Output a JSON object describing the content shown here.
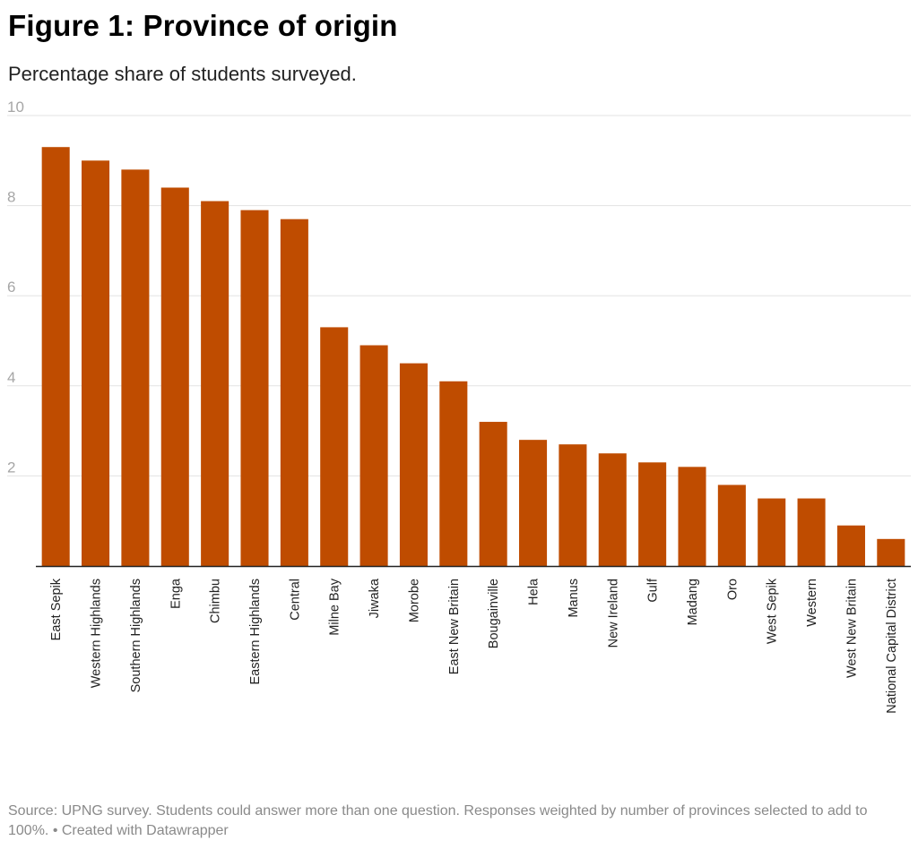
{
  "title": "Figure 1: Province of origin",
  "subtitle": "Percentage share of students surveyed.",
  "footer": {
    "source": "Source: UPNG survey. Students could answer more than one question. Responses weighted by number of provinces selected to add to 100%.",
    "separator": " • ",
    "credit": "Created with Datawrapper"
  },
  "colors": {
    "bar": "#bf4c00",
    "grid": "#e3e3e3",
    "axis": "#222222",
    "tick_label": "#a6a6a6"
  },
  "chart_data": {
    "type": "bar",
    "title": "Figure 1: Province of origin",
    "subtitle": "Percentage share of students surveyed.",
    "xlabel": "",
    "ylabel": "",
    "ylim": [
      0,
      10
    ],
    "yticks": [
      2,
      4,
      6,
      8,
      10
    ],
    "grid": true,
    "categories": [
      "East Sepik",
      "Western Highlands",
      "Southern Highlands",
      "Enga",
      "Chimbu",
      "Eastern Highlands",
      "Central",
      "Milne Bay",
      "Jiwaka",
      "Morobe",
      "East New Britain",
      "Bougainville",
      "Hela",
      "Manus",
      "New Ireland",
      "Gulf",
      "Madang",
      "Oro",
      "West Sepik",
      "Western",
      "West New Britain",
      "National Capital District"
    ],
    "values": [
      9.3,
      9.0,
      8.8,
      8.4,
      8.1,
      7.9,
      7.7,
      5.3,
      4.9,
      4.5,
      4.1,
      3.2,
      2.8,
      2.7,
      2.5,
      2.3,
      2.2,
      1.8,
      1.5,
      1.5,
      0.9,
      0.6
    ]
  }
}
